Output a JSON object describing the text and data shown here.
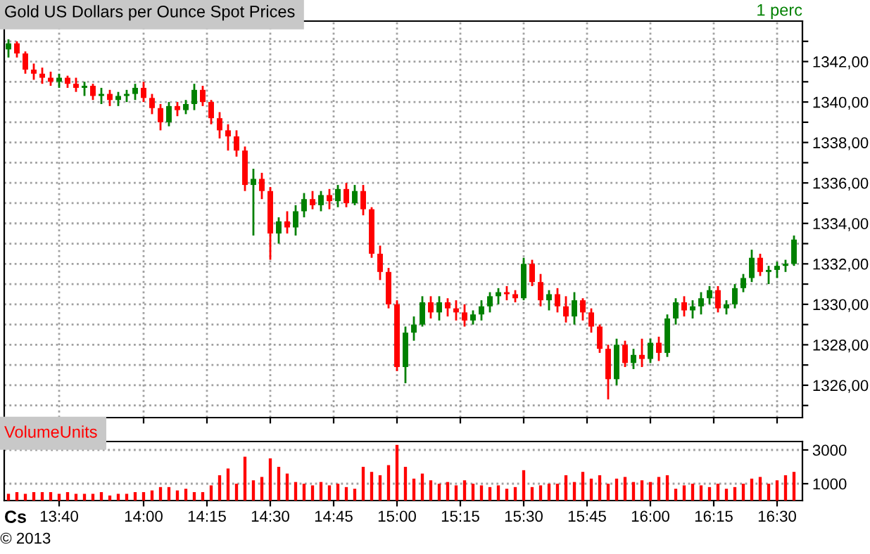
{
  "chart_data": [
    {
      "type": "candlestick",
      "title": "Gold US Dollars per Ounce Spot Prices",
      "annotations": [
        "1 perc"
      ],
      "x": [
        13.4667,
        13.5,
        13.5333,
        13.5667,
        13.6,
        13.6333,
        13.6667,
        13.7,
        13.7333,
        13.7667,
        13.8,
        13.8333,
        13.8667,
        13.9,
        13.9333,
        13.9667,
        14.0,
        14.0333,
        14.0667,
        14.1,
        14.1333,
        14.1667,
        14.2,
        14.2333,
        14.2667,
        14.3,
        14.3333,
        14.3667,
        14.4,
        14.4333,
        14.4667,
        14.5,
        14.5333,
        14.5667,
        14.6,
        14.6333,
        14.6667,
        14.7,
        14.7333,
        14.7667,
        14.8,
        14.8333,
        14.8667,
        14.9,
        14.9333,
        14.9667,
        15.0,
        15.0333,
        15.0667,
        15.1,
        15.1333,
        15.1667,
        15.2,
        15.2333,
        15.2667,
        15.3,
        15.3333,
        15.3667,
        15.4,
        15.4333,
        15.4667,
        15.5,
        15.5333,
        15.5667,
        15.6,
        15.6333,
        15.6667,
        15.7,
        15.7333,
        15.7667,
        15.8,
        15.8333,
        15.8667,
        15.9,
        15.9333,
        15.9667,
        16.0,
        16.0333,
        16.0667,
        16.1,
        16.1333,
        16.1667,
        16.2,
        16.2333,
        16.2667,
        16.3,
        16.3333,
        16.3667,
        16.4,
        16.4333,
        16.4667,
        16.5,
        16.5333,
        16.5667
      ],
      "ohlc": [
        [
          1342.6,
          1343.1,
          1342.2,
          1342.9
        ],
        [
          1342.9,
          1343.0,
          1342.2,
          1342.4
        ],
        [
          1342.4,
          1342.5,
          1341.4,
          1341.6
        ],
        [
          1341.6,
          1341.9,
          1341.1,
          1341.4
        ],
        [
          1341.4,
          1341.7,
          1340.9,
          1341.2
        ],
        [
          1341.2,
          1341.5,
          1340.8,
          1341.0
        ],
        [
          1341.0,
          1341.4,
          1340.7,
          1341.2
        ],
        [
          1341.2,
          1341.3,
          1340.7,
          1340.9
        ],
        [
          1340.9,
          1341.2,
          1340.5,
          1340.7
        ],
        [
          1340.7,
          1341.0,
          1340.3,
          1340.8
        ],
        [
          1340.8,
          1340.9,
          1340.1,
          1340.3
        ],
        [
          1340.3,
          1340.7,
          1339.9,
          1340.4
        ],
        [
          1340.4,
          1340.6,
          1339.8,
          1340.1
        ],
        [
          1340.1,
          1340.5,
          1339.8,
          1340.3
        ],
        [
          1340.3,
          1340.6,
          1340.0,
          1340.4
        ],
        [
          1340.4,
          1340.9,
          1340.1,
          1340.7
        ],
        [
          1340.7,
          1341.0,
          1340.0,
          1340.2
        ],
        [
          1340.2,
          1340.4,
          1339.4,
          1339.7
        ],
        [
          1339.7,
          1339.9,
          1338.6,
          1339.0
        ],
        [
          1339.0,
          1340.0,
          1338.8,
          1339.8
        ],
        [
          1339.8,
          1340.0,
          1339.3,
          1339.6
        ],
        [
          1339.6,
          1340.1,
          1339.4,
          1339.9
        ],
        [
          1339.9,
          1340.9,
          1339.6,
          1340.6
        ],
        [
          1340.6,
          1340.8,
          1339.8,
          1340.0
        ],
        [
          1340.0,
          1340.1,
          1338.9,
          1339.2
        ],
        [
          1339.2,
          1339.5,
          1338.2,
          1338.6
        ],
        [
          1338.6,
          1338.9,
          1337.6,
          1338.3
        ],
        [
          1338.3,
          1338.6,
          1337.3,
          1337.6
        ],
        [
          1337.6,
          1337.8,
          1335.6,
          1335.9
        ],
        [
          1335.9,
          1336.7,
          1333.4,
          1336.2
        ],
        [
          1336.2,
          1336.5,
          1335.2,
          1335.6
        ],
        [
          1335.6,
          1335.8,
          1332.2,
          1333.5
        ],
        [
          1333.5,
          1334.3,
          1333.0,
          1334.1
        ],
        [
          1334.1,
          1334.6,
          1333.5,
          1333.8
        ],
        [
          1333.8,
          1334.9,
          1333.4,
          1334.6
        ],
        [
          1334.6,
          1335.5,
          1334.3,
          1335.2
        ],
        [
          1335.2,
          1335.6,
          1334.7,
          1334.9
        ],
        [
          1334.9,
          1335.6,
          1334.6,
          1335.4
        ],
        [
          1335.4,
          1335.7,
          1334.7,
          1335.1
        ],
        [
          1335.1,
          1335.9,
          1334.8,
          1335.7
        ],
        [
          1335.7,
          1336.0,
          1334.8,
          1335.0
        ],
        [
          1335.0,
          1335.9,
          1334.9,
          1335.6
        ],
        [
          1335.6,
          1335.9,
          1334.4,
          1334.7
        ],
        [
          1334.7,
          1334.8,
          1332.3,
          1332.5
        ],
        [
          1332.5,
          1332.9,
          1331.2,
          1331.6
        ],
        [
          1331.6,
          1331.8,
          1329.8,
          1330.0
        ],
        [
          1330.0,
          1330.2,
          1326.7,
          1326.9
        ],
        [
          1326.9,
          1328.9,
          1326.1,
          1328.6
        ],
        [
          1328.6,
          1329.4,
          1328.2,
          1329.0
        ],
        [
          1329.0,
          1330.4,
          1328.9,
          1330.1
        ],
        [
          1330.1,
          1330.4,
          1329.3,
          1329.6
        ],
        [
          1329.6,
          1330.4,
          1329.2,
          1330.1
        ],
        [
          1330.1,
          1330.3,
          1329.4,
          1329.8
        ],
        [
          1329.8,
          1330.2,
          1329.2,
          1329.6
        ],
        [
          1329.6,
          1330.0,
          1328.9,
          1329.2
        ],
        [
          1329.2,
          1329.7,
          1329.0,
          1329.5
        ],
        [
          1329.5,
          1330.2,
          1329.2,
          1329.9
        ],
        [
          1329.9,
          1330.6,
          1329.6,
          1330.4
        ],
        [
          1330.4,
          1330.8,
          1330.0,
          1330.6
        ],
        [
          1330.6,
          1330.9,
          1330.2,
          1330.5
        ],
        [
          1330.5,
          1330.7,
          1330.1,
          1330.3
        ],
        [
          1330.3,
          1332.3,
          1330.2,
          1332.0
        ],
        [
          1332.0,
          1332.2,
          1330.9,
          1331.1
        ],
        [
          1331.1,
          1331.5,
          1329.9,
          1330.2
        ],
        [
          1330.2,
          1330.7,
          1329.7,
          1330.5
        ],
        [
          1330.5,
          1330.8,
          1329.6,
          1329.9
        ],
        [
          1329.9,
          1330.4,
          1329.1,
          1329.4
        ],
        [
          1329.4,
          1330.6,
          1329.0,
          1330.2
        ],
        [
          1330.2,
          1330.3,
          1329.2,
          1329.6
        ],
        [
          1329.6,
          1329.8,
          1328.6,
          1328.9
        ],
        [
          1328.9,
          1329.0,
          1327.6,
          1327.8
        ],
        [
          1327.8,
          1328.0,
          1325.3,
          1326.3
        ],
        [
          1326.3,
          1328.3,
          1326.0,
          1328.0
        ],
        [
          1328.0,
          1328.2,
          1326.9,
          1327.1
        ],
        [
          1327.1,
          1327.8,
          1326.8,
          1327.5
        ],
        [
          1327.5,
          1328.3,
          1326.9,
          1327.3
        ],
        [
          1327.3,
          1328.3,
          1327.1,
          1328.1
        ],
        [
          1328.1,
          1328.4,
          1327.2,
          1327.6
        ],
        [
          1327.6,
          1329.5,
          1327.4,
          1329.3
        ],
        [
          1329.3,
          1330.3,
          1329.0,
          1330.1
        ],
        [
          1330.1,
          1330.4,
          1329.4,
          1329.7
        ],
        [
          1329.7,
          1330.2,
          1329.3,
          1329.9
        ],
        [
          1329.9,
          1330.6,
          1329.5,
          1330.3
        ],
        [
          1330.3,
          1330.9,
          1330.0,
          1330.7
        ],
        [
          1330.7,
          1330.9,
          1329.6,
          1329.8
        ],
        [
          1329.8,
          1330.2,
          1329.5,
          1330.0
        ],
        [
          1330.0,
          1331.0,
          1329.8,
          1330.8
        ],
        [
          1330.8,
          1331.5,
          1330.6,
          1331.3
        ],
        [
          1331.3,
          1332.7,
          1331.1,
          1332.3
        ],
        [
          1332.3,
          1332.5,
          1331.4,
          1331.6
        ],
        [
          1331.6,
          1331.9,
          1331.0,
          1331.7
        ],
        [
          1331.7,
          1332.1,
          1331.3,
          1331.9
        ],
        [
          1331.9,
          1332.2,
          1331.6,
          1332.0
        ],
        [
          1332.0,
          1333.4,
          1331.9,
          1333.2
        ]
      ],
      "colors": [
        "#008000",
        "#ff0000",
        "#ff0000",
        "#ff0000",
        "#ff0000",
        "#ff0000",
        "#008000",
        "#ff0000",
        "#ff0000",
        "#008000",
        "#ff0000",
        "#008000",
        "#ff0000",
        "#008000",
        "#008000",
        "#008000",
        "#ff0000",
        "#ff0000",
        "#ff0000",
        "#008000",
        "#ff0000",
        "#008000",
        "#008000",
        "#ff0000",
        "#ff0000",
        "#ff0000",
        "#ff0000",
        "#ff0000",
        "#ff0000",
        "#008000",
        "#ff0000",
        "#ff0000",
        "#008000",
        "#ff0000",
        "#008000",
        "#008000",
        "#ff0000",
        "#008000",
        "#ff0000",
        "#008000",
        "#ff0000",
        "#008000",
        "#ff0000",
        "#ff0000",
        "#ff0000",
        "#ff0000",
        "#ff0000",
        "#008000",
        "#008000",
        "#008000",
        "#ff0000",
        "#008000",
        "#ff0000",
        "#ff0000",
        "#ff0000",
        "#008000",
        "#008000",
        "#008000",
        "#008000",
        "#ff0000",
        "#ff0000",
        "#008000",
        "#ff0000",
        "#ff0000",
        "#008000",
        "#ff0000",
        "#ff0000",
        "#008000",
        "#ff0000",
        "#ff0000",
        "#ff0000",
        "#ff0000",
        "#008000",
        "#ff0000",
        "#008000",
        "#ff0000",
        "#008000",
        "#ff0000",
        "#008000",
        "#008000",
        "#ff0000",
        "#008000",
        "#008000",
        "#008000",
        "#ff0000",
        "#008000",
        "#008000",
        "#008000",
        "#008000",
        "#ff0000",
        "#008000",
        "#008000",
        "#008000",
        "#008000"
      ],
      "xlim": [
        13.45,
        16.6
      ],
      "ylim": [
        1324.4,
        1344.0
      ],
      "xticks": [
        {
          "value": 13.6667,
          "label": null
        },
        {
          "value": 14.0,
          "label": null
        },
        {
          "value": 14.25,
          "label": null
        },
        {
          "value": 14.5,
          "label": null
        },
        {
          "value": 14.75,
          "label": null
        },
        {
          "value": 15.0,
          "label": null
        },
        {
          "value": 15.25,
          "label": null
        },
        {
          "value": 15.5,
          "label": null
        },
        {
          "value": 15.75,
          "label": null
        },
        {
          "value": 16.0,
          "label": null
        },
        {
          "value": 16.25,
          "label": null
        },
        {
          "value": 16.5,
          "label": null
        }
      ],
      "yticks": [
        {
          "value": 1325,
          "label": null
        },
        {
          "value": 1326,
          "label": "1326,00"
        },
        {
          "value": 1327,
          "label": null
        },
        {
          "value": 1328,
          "label": "1328,00"
        },
        {
          "value": 1329,
          "label": null
        },
        {
          "value": 1330,
          "label": "1330,00"
        },
        {
          "value": 1331,
          "label": null
        },
        {
          "value": 1332,
          "label": "1332,00"
        },
        {
          "value": 1333,
          "label": null
        },
        {
          "value": 1334,
          "label": "1334,00"
        },
        {
          "value": 1335,
          "label": null
        },
        {
          "value": 1336,
          "label": "1336,00"
        },
        {
          "value": 1337,
          "label": null
        },
        {
          "value": 1338,
          "label": "1338,00"
        },
        {
          "value": 1339,
          "label": null
        },
        {
          "value": 1340,
          "label": "1340,00"
        },
        {
          "value": 1341,
          "label": null
        },
        {
          "value": 1342,
          "label": "1342,00"
        },
        {
          "value": 1343,
          "label": null
        }
      ],
      "grid": true,
      "tick_labels": "y"
    },
    {
      "type": "bar",
      "title": "VolumeUnits",
      "annotations": [
        "Cs",
        "© 2013"
      ],
      "x": [
        13.4667,
        13.5,
        13.5333,
        13.5667,
        13.6,
        13.6333,
        13.6667,
        13.7,
        13.7333,
        13.7667,
        13.8,
        13.8333,
        13.8667,
        13.9,
        13.9333,
        13.9667,
        14.0,
        14.0333,
        14.0667,
        14.1,
        14.1333,
        14.1667,
        14.2,
        14.2333,
        14.2667,
        14.3,
        14.3333,
        14.3667,
        14.4,
        14.4333,
        14.4667,
        14.5,
        14.5333,
        14.5667,
        14.6,
        14.6333,
        14.6667,
        14.7,
        14.7333,
        14.7667,
        14.8,
        14.8333,
        14.8667,
        14.9,
        14.9333,
        14.9667,
        15.0,
        15.0333,
        15.0667,
        15.1,
        15.1333,
        15.1667,
        15.2,
        15.2333,
        15.2667,
        15.3,
        15.3333,
        15.3667,
        15.4,
        15.4333,
        15.4667,
        15.5,
        15.5333,
        15.5667,
        15.6,
        15.6333,
        15.6667,
        15.7,
        15.7333,
        15.7667,
        15.8,
        15.8333,
        15.8667,
        15.9,
        15.9333,
        15.9667,
        16.0,
        16.0333,
        16.0667,
        16.1,
        16.1333,
        16.1667,
        16.2,
        16.2333,
        16.2667,
        16.3,
        16.3333,
        16.3667,
        16.4,
        16.4333,
        16.4667,
        16.5,
        16.5333,
        16.5667
      ],
      "series": [
        {
          "color": "#ff0000",
          "values": [
            400,
            500,
            400,
            500,
            500,
            500,
            400,
            500,
            400,
            400,
            400,
            500,
            300,
            400,
            400,
            500,
            500,
            600,
            800,
            800,
            600,
            700,
            500,
            500,
            900,
            1500,
            1900,
            1000,
            2600,
            1200,
            1400,
            2500,
            2000,
            1600,
            1100,
            1000,
            900,
            1100,
            900,
            1000,
            800,
            700,
            2000,
            1700,
            1500,
            2100,
            3300,
            2000,
            1300,
            1600,
            1200,
            1000,
            1100,
            900,
            1200,
            1000,
            900,
            800,
            900,
            700,
            800,
            1800,
            800,
            900,
            1000,
            1000,
            1500,
            1100,
            1700,
            1300,
            1500,
            1000,
            1300,
            1400,
            1100,
            1200,
            1100,
            1400,
            1500,
            700,
            900,
            1000,
            900,
            800,
            1000,
            700,
            800,
            1000,
            1300,
            1400,
            1000,
            1200,
            1500,
            1700
          ]
        }
      ],
      "xlim": [
        13.45,
        16.6
      ],
      "ylim": [
        0,
        3500
      ],
      "xticks": [
        {
          "value": 13.6667,
          "label": "13:40"
        },
        {
          "value": 14.0,
          "label": "14:00"
        },
        {
          "value": 14.25,
          "label": "14:15"
        },
        {
          "value": 14.5,
          "label": "14:30"
        },
        {
          "value": 14.75,
          "label": "14:45"
        },
        {
          "value": 15.0,
          "label": "15:00"
        },
        {
          "value": 15.25,
          "label": "15:15"
        },
        {
          "value": 15.5,
          "label": "15:30"
        },
        {
          "value": 15.75,
          "label": "15:45"
        },
        {
          "value": 16.0,
          "label": "16:00"
        },
        {
          "value": 16.25,
          "label": "16:15"
        },
        {
          "value": 16.5,
          "label": "16:30"
        }
      ],
      "yticks": [
        1000,
        3000
      ],
      "grid": "y"
    }
  ]
}
